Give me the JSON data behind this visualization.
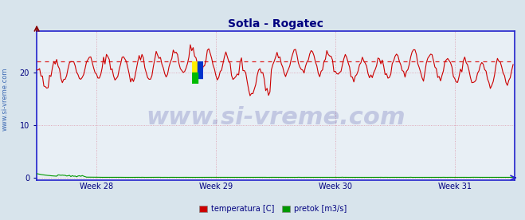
{
  "title": "Sotla - Rogatec",
  "title_color": "#000080",
  "title_fontsize": 10,
  "bg_color": "#d8e4ec",
  "plot_bg_color": "#e8eff5",
  "grid_color": "#c8b8c8",
  "grid_color_minor": "#d8c8d8",
  "axis_color": "#2222cc",
  "tick_label_color": "#000080",
  "xlabel_ticks": [
    "Week 28",
    "Week 29",
    "Week 30",
    "Week 31"
  ],
  "ylabel_ticks": [
    0,
    10,
    20
  ],
  "ylim": [
    -0.5,
    28
  ],
  "xlim": [
    0,
    336
  ],
  "n_points": 336,
  "avg_line_y": 22.2,
  "avg_line_color": "#dd2222",
  "avg_line_style": "--",
  "temp_color": "#cc0000",
  "flow_color": "#009900",
  "watermark": "www.si-vreme.com",
  "watermark_color": "#1a1a8c",
  "watermark_alpha": 0.18,
  "watermark_fontsize": 22,
  "legend_labels": [
    "temperatura [C]",
    "pretok [m3/s]"
  ],
  "legend_colors": [
    "#cc0000",
    "#009900"
  ],
  "side_label": "www.si-vreme.com",
  "side_label_color": "#2255aa",
  "side_label_fontsize": 6,
  "logo_yellow": "#ffee00",
  "logo_blue": "#0033cc",
  "logo_green": "#00bb00",
  "logo_red": "#dd0000"
}
